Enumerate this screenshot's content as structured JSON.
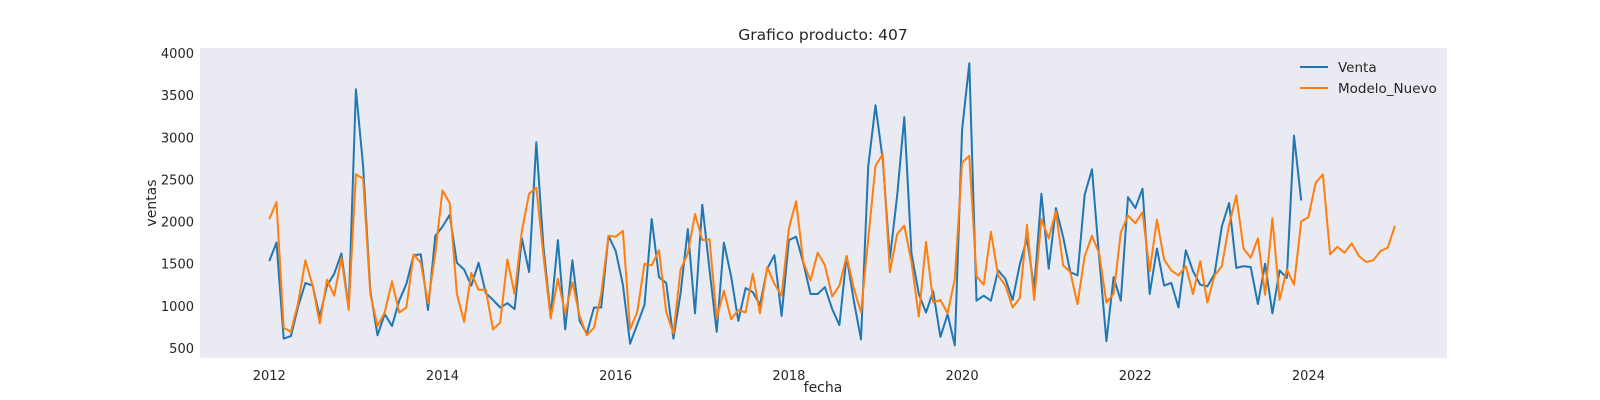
{
  "chart_data": {
    "type": "line",
    "title": "Grafico producto: 407",
    "xlabel": "fecha",
    "ylabel": "ventas",
    "x_start": "2012-01",
    "xlim": [
      2011.2,
      2025.6
    ],
    "ylim": [
      380,
      4060
    ],
    "x_ticks": [
      2012,
      2014,
      2016,
      2018,
      2020,
      2022,
      2024
    ],
    "y_ticks": [
      500,
      1000,
      1500,
      2000,
      2500,
      3000,
      3500,
      4000
    ],
    "grid": false,
    "legend_position": "top-right",
    "series": [
      {
        "name": "Venta",
        "color": "#1f77b4",
        "values": [
          1530,
          1750,
          610,
          640,
          990,
          1270,
          1240,
          870,
          1240,
          1380,
          1620,
          970,
          3570,
          2660,
          1180,
          650,
          900,
          760,
          1060,
          1260,
          1600,
          1610,
          950,
          1830,
          1940,
          2080,
          1510,
          1430,
          1240,
          1510,
          1150,
          1070,
          980,
          1030,
          960,
          1800,
          1400,
          2940,
          1690,
          880,
          1780,
          720,
          1540,
          820,
          670,
          980,
          980,
          1830,
          1650,
          1250,
          550,
          780,
          1010,
          2030,
          1340,
          1270,
          610,
          1150,
          1910,
          910,
          2200,
          1430,
          690,
          1750,
          1350,
          820,
          1210,
          1160,
          1010,
          1440,
          1600,
          880,
          1780,
          1820,
          1510,
          1140,
          1140,
          1220,
          960,
          770,
          1590,
          1060,
          600,
          2650,
          3380,
          2740,
          1560,
          2300,
          3240,
          1620,
          1140,
          920,
          1170,
          630,
          900,
          530,
          3090,
          3880,
          1060,
          1120,
          1060,
          1420,
          1320,
          1070,
          1490,
          1800,
          1200,
          2330,
          1440,
          2160,
          1820,
          1400,
          1360,
          2320,
          2620,
          1570,
          580,
          1340,
          1060,
          2290,
          2160,
          2390,
          1140,
          1680,
          1240,
          1270,
          980,
          1660,
          1410,
          1250,
          1230,
          1380,
          1940,
          2220,
          1450,
          1470,
          1460,
          1020,
          1500,
          910,
          1420,
          1330,
          3020,
          2250
        ]
      },
      {
        "name": "Modelo_Nuevo",
        "color": "#ff7f0e",
        "values": [
          2030,
          2230,
          740,
          690,
          1030,
          1540,
          1240,
          790,
          1310,
          1120,
          1570,
          950,
          2560,
          2510,
          1140,
          760,
          920,
          1290,
          920,
          980,
          1610,
          1510,
          1030,
          1620,
          2370,
          2220,
          1140,
          810,
          1390,
          1190,
          1190,
          720,
          800,
          1550,
          1140,
          1890,
          2330,
          2400,
          1590,
          850,
          1320,
          910,
          1280,
          880,
          650,
          740,
          1140,
          1830,
          1820,
          1890,
          720,
          930,
          1500,
          1480,
          1660,
          930,
          670,
          1430,
          1620,
          2090,
          1780,
          1790,
          850,
          1180,
          840,
          950,
          920,
          1380,
          910,
          1460,
          1260,
          1120,
          1920,
          2240,
          1520,
          1300,
          1630,
          1480,
          1110,
          1240,
          1590,
          1210,
          920,
          1790,
          2660,
          2800,
          1400,
          1850,
          1950,
          1520,
          870,
          1760,
          1040,
          1070,
          910,
          1320,
          2700,
          2780,
          1350,
          1250,
          1880,
          1360,
          1240,
          980,
          1090,
          1960,
          1070,
          2030,
          1800,
          2120,
          1480,
          1400,
          1020,
          1590,
          1830,
          1620,
          1040,
          1140,
          1870,
          2070,
          1980,
          2110,
          1410,
          2020,
          1550,
          1420,
          1360,
          1470,
          1140,
          1530,
          1040,
          1360,
          1470,
          1960,
          2310,
          1680,
          1570,
          1800,
          1130,
          2040,
          1070,
          1430,
          1250,
          2000,
          2050,
          2460,
          2560,
          1610,
          1700,
          1630,
          1740,
          1590,
          1520,
          1540,
          1650,
          1690,
          1950
        ]
      }
    ]
  }
}
